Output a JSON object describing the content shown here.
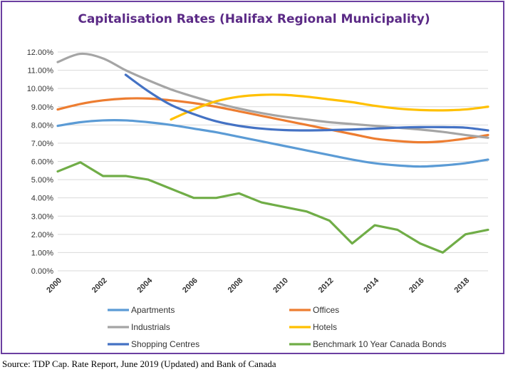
{
  "title": "Capitalisation Rates (Halifax Regional Municipality)",
  "source": "Source: TDP Cap. Rate Report, June 2019 (Updated) and Bank of Canada",
  "chart_data": {
    "type": "line",
    "title": "Capitalisation Rates (Halifax Regional Municipality)",
    "xlabel": "",
    "ylabel": "",
    "xlim": [
      2000,
      2019
    ],
    "ylim": [
      0,
      12
    ],
    "yticks": [
      "0.00%",
      "1.00%",
      "2.00%",
      "3.00%",
      "4.00%",
      "5.00%",
      "6.00%",
      "7.00%",
      "8.00%",
      "9.00%",
      "10.00%",
      "11.00%",
      "12.00%"
    ],
    "xticks": [
      "2000",
      "2002",
      "2004",
      "2006",
      "2008",
      "2010",
      "2012",
      "2014",
      "2016",
      "2018"
    ],
    "grid": "horizontal",
    "legend": "bottom",
    "series": [
      {
        "name": "Apartments",
        "color": "#5b9bd5",
        "x": [
          2000,
          2001,
          2002,
          2003,
          2004,
          2005,
          2006,
          2007,
          2008,
          2009,
          2010,
          2011,
          2012,
          2013,
          2014,
          2015,
          2016,
          2017,
          2018,
          2019
        ],
        "y": [
          7.95,
          8.15,
          8.25,
          8.25,
          8.15,
          8.0,
          7.8,
          7.6,
          7.35,
          7.1,
          6.85,
          6.6,
          6.35,
          6.1,
          5.9,
          5.78,
          5.72,
          5.78,
          5.9,
          6.1
        ]
      },
      {
        "name": "Offices",
        "color": "#ed7d31",
        "x": [
          2000,
          2001,
          2002,
          2003,
          2004,
          2005,
          2006,
          2007,
          2008,
          2009,
          2010,
          2011,
          2012,
          2013,
          2014,
          2015,
          2016,
          2017,
          2018,
          2019
        ],
        "y": [
          8.85,
          9.15,
          9.35,
          9.45,
          9.45,
          9.35,
          9.2,
          9.0,
          8.75,
          8.5,
          8.25,
          8.0,
          7.75,
          7.5,
          7.25,
          7.12,
          7.05,
          7.1,
          7.25,
          7.45
        ]
      },
      {
        "name": "Industrials",
        "color": "#a5a5a5",
        "x": [
          2000,
          2001,
          2002,
          2003,
          2004,
          2005,
          2006,
          2007,
          2008,
          2009,
          2010,
          2011,
          2012,
          2013,
          2014,
          2015,
          2016,
          2017,
          2018,
          2019
        ],
        "y": [
          11.45,
          11.9,
          11.65,
          11.0,
          10.45,
          9.95,
          9.55,
          9.2,
          8.9,
          8.65,
          8.45,
          8.3,
          8.15,
          8.05,
          7.95,
          7.85,
          7.75,
          7.62,
          7.45,
          7.3
        ]
      },
      {
        "name": "Hotels",
        "color": "#ffc000",
        "x": [
          2005,
          2006,
          2007,
          2008,
          2009,
          2010,
          2011,
          2012,
          2013,
          2014,
          2015,
          2016,
          2017,
          2018,
          2019
        ],
        "y": [
          8.3,
          8.85,
          9.3,
          9.55,
          9.65,
          9.65,
          9.55,
          9.4,
          9.25,
          9.05,
          8.9,
          8.82,
          8.8,
          8.85,
          9.0
        ]
      },
      {
        "name": "Shopping Centres",
        "color": "#4472c4",
        "x": [
          2003,
          2004,
          2005,
          2006,
          2007,
          2008,
          2009,
          2010,
          2011,
          2012,
          2013,
          2014,
          2015,
          2016,
          2017,
          2018,
          2019
        ],
        "y": [
          10.75,
          9.85,
          9.1,
          8.6,
          8.2,
          7.95,
          7.8,
          7.72,
          7.7,
          7.72,
          7.75,
          7.8,
          7.85,
          7.88,
          7.88,
          7.85,
          7.7
        ]
      },
      {
        "name": "Benchmark 10 Year Canada Bonds",
        "color": "#70ad47",
        "x": [
          2000,
          2001,
          2002,
          2003,
          2004,
          2005,
          2006,
          2007,
          2008,
          2009,
          2010,
          2011,
          2012,
          2013,
          2014,
          2015,
          2016,
          2017,
          2018,
          2019
        ],
        "y": [
          5.45,
          5.95,
          5.2,
          5.2,
          5.0,
          4.5,
          4.0,
          4.0,
          4.25,
          3.75,
          3.5,
          3.25,
          2.75,
          1.5,
          2.5,
          2.25,
          1.5,
          1.0,
          2.0,
          2.25
        ]
      }
    ]
  }
}
